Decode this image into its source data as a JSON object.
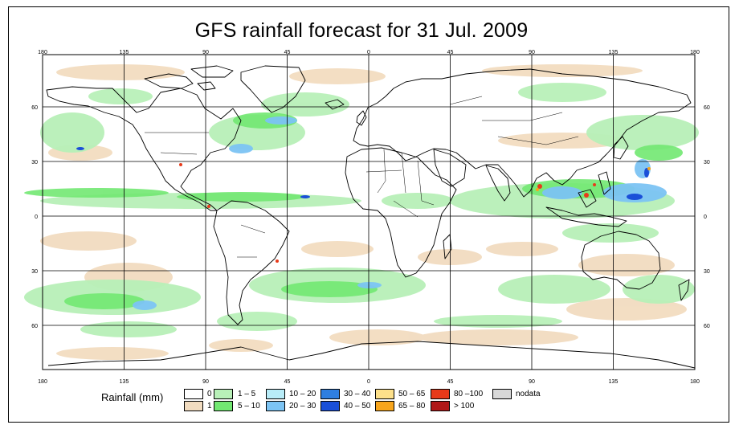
{
  "title": "GFS rainfall forecast for 31 Jul. 2009",
  "map": {
    "top_lon_labels": [
      "180",
      "135",
      "90",
      "45",
      "0",
      "45",
      "90",
      "135",
      "180"
    ],
    "bottom_lon_labels": [
      "180",
      "135",
      "90",
      "45",
      "0",
      "45",
      "90",
      "135",
      "180"
    ],
    "left_lat_labels": [
      "60",
      "30",
      "0",
      "30",
      "60"
    ],
    "right_lat_labels": [
      "60",
      "30",
      "0",
      "30",
      "60"
    ]
  },
  "legend": {
    "title": "Rainfall (mm)",
    "items": [
      {
        "label": "0",
        "color": "#ffffff"
      },
      {
        "label": "1",
        "color": "#f2dcc0"
      },
      {
        "label": "1 – 5",
        "color": "#b8f0b8"
      },
      {
        "label": "5 – 10",
        "color": "#72e872"
      },
      {
        "label": "10 – 20",
        "color": "#b8ecf8"
      },
      {
        "label": "20 – 30",
        "color": "#7cc4f4"
      },
      {
        "label": "30 – 40",
        "color": "#2f7fe0"
      },
      {
        "label": "40 – 50",
        "color": "#1a4fd8"
      },
      {
        "label": "50 – 65",
        "color": "#fde08a"
      },
      {
        "label": "65 – 80",
        "color": "#f7a51c"
      },
      {
        "label": "80 –100",
        "color": "#e83a1a"
      },
      {
        "label": "> 100",
        "color": "#b01818"
      },
      {
        "label": "nodata",
        "color": "#d8d8d8"
      }
    ]
  }
}
